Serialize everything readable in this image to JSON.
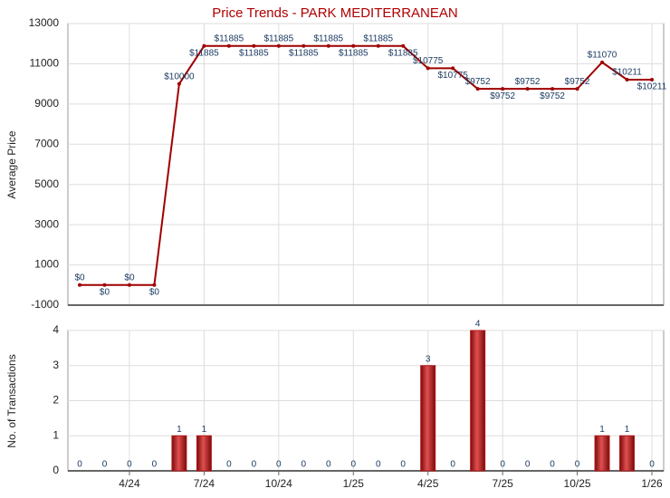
{
  "chart_data": [
    {
      "type": "line",
      "title": "Price Trends - PARK MEDITERRANEAN",
      "y_label": "Average Price",
      "color": "#a00000",
      "values": [
        0,
        0,
        0,
        0,
        10000,
        11885,
        11885,
        11885,
        11885,
        11885,
        11885,
        11885,
        11885,
        11885,
        10775,
        10775,
        9752,
        9752,
        9752,
        9752,
        9752,
        11070,
        10211,
        10211
      ],
      "value_labels": [
        "$0",
        "$0",
        "$0",
        "$0",
        "$10000",
        "$11885",
        "$11885",
        "$11885",
        "$11885",
        "$11885",
        "$11885",
        "$11885",
        "$11885",
        "$11885",
        "$10775",
        "$10775",
        "$9752",
        "$9752",
        "$9752",
        "$9752",
        "$9752",
        "$11070",
        "$10211",
        "$10211"
      ],
      "ylim": [
        -1000,
        13000
      ],
      "yticks": [
        -1000,
        1000,
        3000,
        5000,
        7000,
        9000,
        11000,
        13000
      ],
      "grid": true
    },
    {
      "type": "bar",
      "y_label": "No. of Transactions",
      "color": "#b01818",
      "categories": [
        null,
        null,
        "4/24",
        null,
        null,
        "7/24",
        null,
        null,
        "10/24",
        null,
        null,
        "1/25",
        null,
        null,
        "4/25",
        null,
        null,
        "7/25",
        null,
        null,
        "10/25",
        null,
        null,
        "1/26"
      ],
      "values": [
        0,
        0,
        0,
        0,
        1,
        1,
        0,
        0,
        0,
        0,
        0,
        0,
        0,
        0,
        3,
        0,
        4,
        0,
        0,
        0,
        0,
        1,
        1,
        0
      ],
      "ylim": [
        0,
        4
      ],
      "yticks": [
        0,
        1,
        2,
        3,
        4
      ],
      "grid": true
    }
  ]
}
